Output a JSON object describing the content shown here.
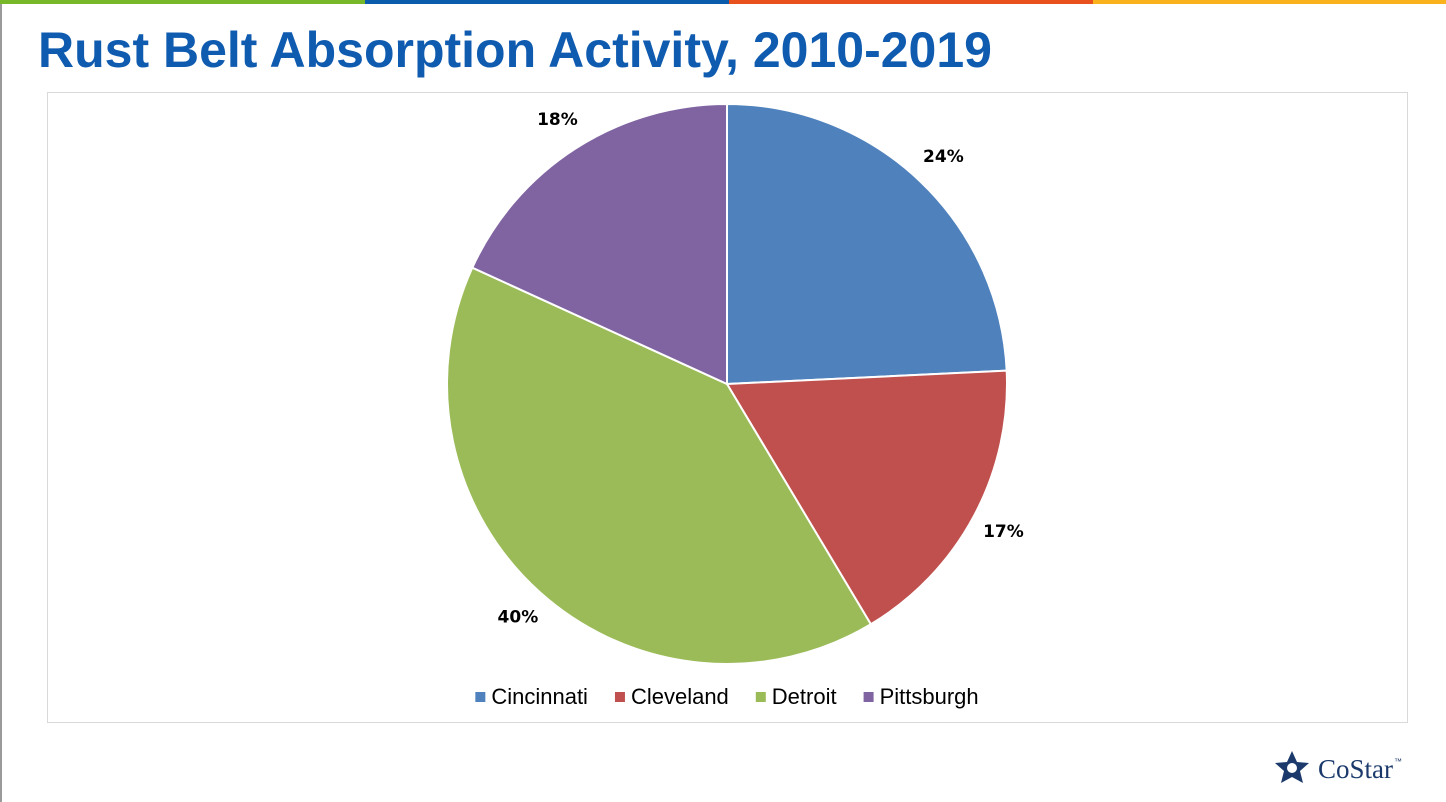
{
  "chart_data": {
    "type": "pie",
    "title": "Rust Belt Absorption Activity, 2010-2019",
    "categories": [
      "Cincinnati",
      "Cleveland",
      "Detroit",
      "Pittsburgh"
    ],
    "values": [
      24,
      17,
      40,
      18
    ],
    "value_labels": [
      "24%",
      "17%",
      "40%",
      "18%"
    ],
    "colors": [
      "#4f81bd",
      "#c0504d",
      "#9bbb59",
      "#8064a2"
    ],
    "legend": "bottom"
  },
  "footer": {
    "logo": "CoStar",
    "trademark": "™"
  }
}
